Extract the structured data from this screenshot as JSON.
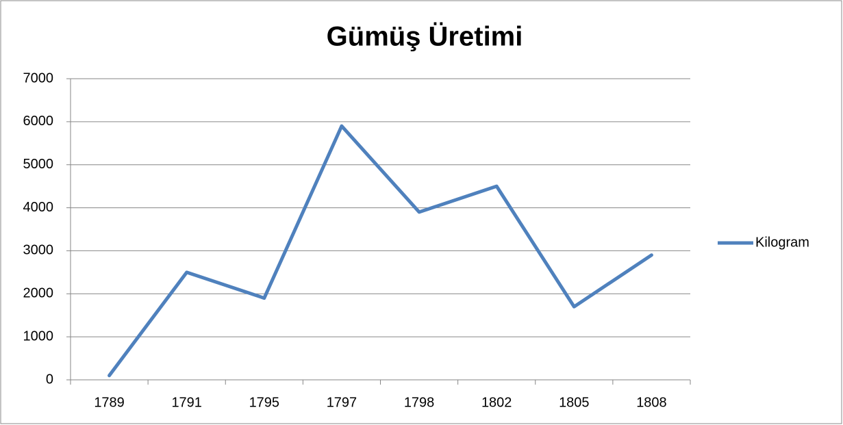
{
  "chart_data": {
    "type": "line",
    "title": "Gümüş Üretimi",
    "categories": [
      "1789",
      "1791",
      "1795",
      "1797",
      "1798",
      "1802",
      "1805",
      "1808"
    ],
    "series": [
      {
        "name": "Kilogram",
        "color": "#4f81bd",
        "values": [
          100,
          2500,
          1900,
          5900,
          3900,
          4500,
          1700,
          2900
        ]
      }
    ],
    "ylim": [
      0,
      7000
    ],
    "yticks": [
      0,
      1000,
      2000,
      3000,
      4000,
      5000,
      6000,
      7000
    ],
    "grid": true,
    "legend": "right"
  }
}
